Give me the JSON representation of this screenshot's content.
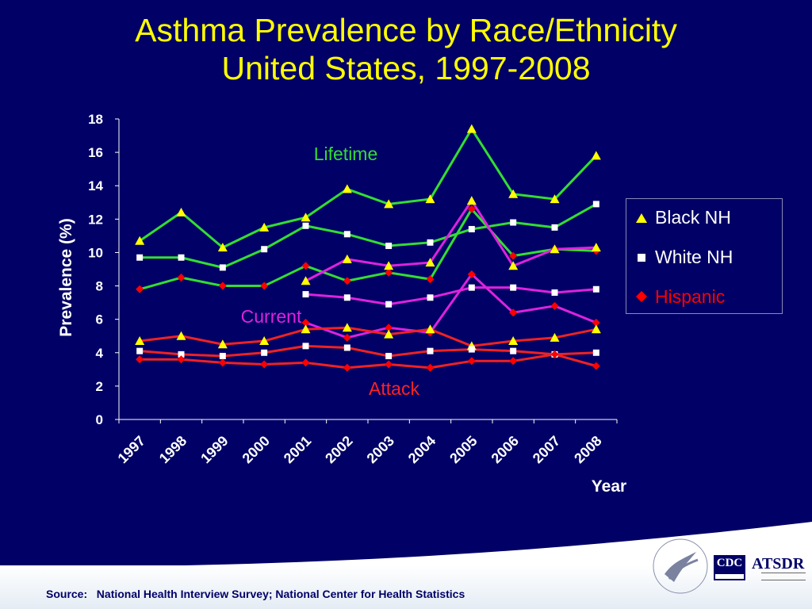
{
  "slide": {
    "title_line1": "Asthma Prevalence by Race/Ethnicity",
    "title_line2": "United States, 1997-2008",
    "source": "Source:   National Health Interview Survey; National Center for Health Statistics"
  },
  "logos": {
    "cdc": "CDC",
    "atsdr": "ATSDR"
  },
  "chart_data": {
    "type": "line",
    "xlabel": "Year",
    "ylabel": "Prevalence (%)",
    "ylim": [
      0,
      18
    ],
    "yticks": [
      0,
      2,
      4,
      6,
      8,
      10,
      12,
      14,
      16,
      18
    ],
    "categories": [
      "1997",
      "1998",
      "1999",
      "2000",
      "2001",
      "2002",
      "2003",
      "2004",
      "2005",
      "2006",
      "2007",
      "2008"
    ],
    "legend": [
      {
        "label": "Black NH",
        "marker": "triangle",
        "color": "#ffff00",
        "text_color": "#ffffff"
      },
      {
        "label": "White NH",
        "marker": "square",
        "color": "#ffffff",
        "text_color": "#ffffff"
      },
      {
        "label": "Hispanic",
        "marker": "diamond",
        "color": "#ff0000",
        "text_color": "#ff0000"
      }
    ],
    "group_labels": [
      {
        "text": "Lifetime",
        "color": "#33dd33"
      },
      {
        "text": "Current",
        "color": "#dd22dd"
      },
      {
        "text": "Attack",
        "color": "#ff2222"
      }
    ],
    "series": [
      {
        "group": "Lifetime",
        "race": "Black NH",
        "line_color": "#33dd33",
        "marker": "triangle",
        "marker_color": "#ffff00",
        "values": [
          10.7,
          12.4,
          10.3,
          11.5,
          12.1,
          13.8,
          12.9,
          13.2,
          17.4,
          13.5,
          13.2,
          15.8
        ]
      },
      {
        "group": "Lifetime",
        "race": "White NH",
        "line_color": "#33dd33",
        "marker": "square",
        "marker_color": "#ffffff",
        "values": [
          9.7,
          9.7,
          9.1,
          10.2,
          11.6,
          11.1,
          10.4,
          10.6,
          11.4,
          11.8,
          11.5,
          12.9
        ]
      },
      {
        "group": "Lifetime",
        "race": "Hispanic",
        "line_color": "#33dd33",
        "marker": "diamond",
        "marker_color": "#ff0000",
        "values": [
          7.8,
          8.5,
          8.0,
          8.0,
          9.2,
          8.3,
          8.8,
          8.4,
          12.6,
          9.8,
          10.2,
          10.1
        ]
      },
      {
        "group": "Current",
        "race": "Black NH",
        "line_color": "#dd22dd",
        "marker": "triangle",
        "marker_color": "#ffff00",
        "values": [
          null,
          null,
          null,
          null,
          8.3,
          9.6,
          9.2,
          9.4,
          13.1,
          9.2,
          10.2,
          10.3
        ]
      },
      {
        "group": "Current",
        "race": "White NH",
        "line_color": "#dd22dd",
        "marker": "square",
        "marker_color": "#ffffff",
        "values": [
          null,
          null,
          null,
          null,
          7.5,
          7.3,
          6.9,
          7.3,
          7.9,
          7.9,
          7.6,
          7.8
        ]
      },
      {
        "group": "Current",
        "race": "Hispanic",
        "line_color": "#dd22dd",
        "marker": "diamond",
        "marker_color": "#ff0000",
        "values": [
          null,
          null,
          null,
          null,
          5.8,
          4.9,
          5.5,
          5.2,
          8.7,
          6.4,
          6.8,
          5.8
        ]
      },
      {
        "group": "Attack",
        "race": "Black NH",
        "line_color": "#ee2222",
        "marker": "triangle",
        "marker_color": "#ffff00",
        "values": [
          4.7,
          5.0,
          4.5,
          4.7,
          5.4,
          5.5,
          5.1,
          5.4,
          4.4,
          4.7,
          4.9,
          5.4
        ]
      },
      {
        "group": "Attack",
        "race": "White NH",
        "line_color": "#ee2222",
        "marker": "square",
        "marker_color": "#ffffff",
        "values": [
          4.1,
          3.9,
          3.8,
          4.0,
          4.4,
          4.3,
          3.8,
          4.1,
          4.2,
          4.1,
          3.9,
          4.0
        ]
      },
      {
        "group": "Attack",
        "race": "Hispanic",
        "line_color": "#ee2222",
        "marker": "diamond",
        "marker_color": "#ff0000",
        "values": [
          3.6,
          3.6,
          3.4,
          3.3,
          3.4,
          3.1,
          3.3,
          3.1,
          3.5,
          3.5,
          3.9,
          3.2
        ]
      }
    ]
  }
}
